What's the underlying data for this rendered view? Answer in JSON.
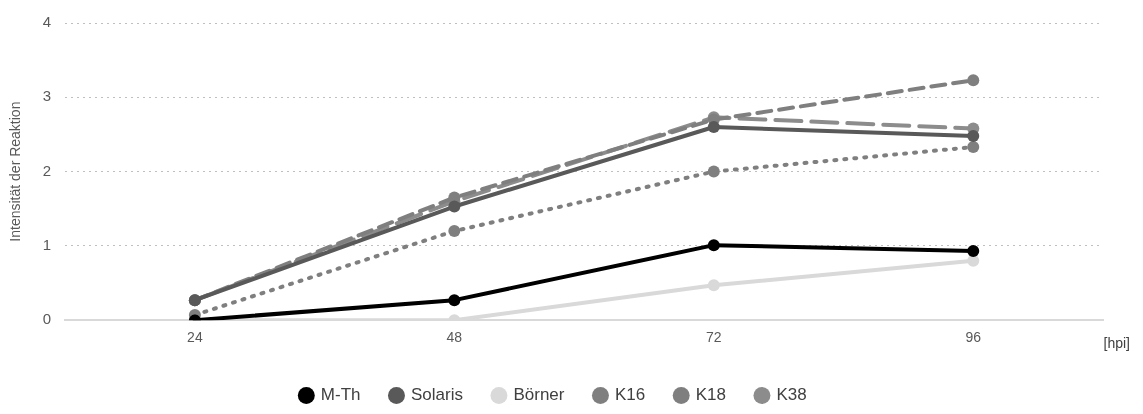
{
  "chart_data": {
    "type": "line",
    "ylabel": "Intensität der Reaktion",
    "xlabel": "[hpi]",
    "categories": [
      "24",
      "48",
      "72",
      "96"
    ],
    "ylim": [
      0,
      4
    ],
    "yticks": [
      0,
      1,
      2,
      3,
      4
    ],
    "grid": "y",
    "legend": "bottom",
    "marker": "circle",
    "series": [
      {
        "name": "M-Th",
        "color": "#000000",
        "line_style": "solid",
        "values": [
          0,
          0.27,
          1.01,
          0.93
        ]
      },
      {
        "name": "Solaris",
        "color": "#595959",
        "line_style": "solid",
        "values": [
          0.27,
          1.53,
          2.6,
          2.48
        ]
      },
      {
        "name": "Börner",
        "color": "#d9d9d9",
        "line_style": "solid",
        "values": [
          0,
          0,
          0.47,
          0.8
        ]
      },
      {
        "name": "K16",
        "color": "#7f7f7f",
        "line_style": "dashed",
        "values": [
          0.27,
          1.65,
          2.7,
          3.23
        ]
      },
      {
        "name": "K18",
        "color": "#7f7f7f",
        "line_style": "dotted",
        "values": [
          0.07,
          1.2,
          2.0,
          2.33
        ]
      },
      {
        "name": "K38",
        "color": "#8c8c8c",
        "line_style": "longdash",
        "values": [
          0.27,
          1.6,
          2.73,
          2.58
        ]
      }
    ]
  }
}
